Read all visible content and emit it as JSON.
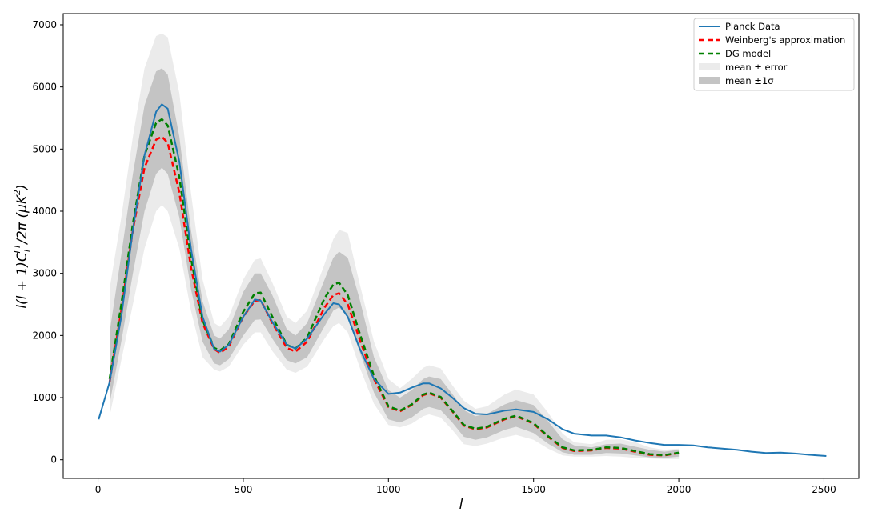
{
  "chart_data": {
    "type": "line",
    "title": "",
    "xlabel": "l",
    "ylabel": "l(l + 1)C_l^TT/2π (μK^2)",
    "ylabel_parts": {
      "main": "l(l + 1)C",
      "sub": "l",
      "sup": "TT",
      "after": "/2π (μK",
      "sup2": "2",
      "end": ")"
    },
    "xlim": [
      -120,
      2620
    ],
    "ylim": [
      -300,
      7180
    ],
    "xticks": [
      0,
      500,
      1000,
      1500,
      2000,
      2500
    ],
    "yticks": [
      0,
      1000,
      2000,
      3000,
      4000,
      5000,
      6000,
      7000
    ],
    "xtick_labels": [
      "0",
      "500",
      "1000",
      "1500",
      "2000",
      "2500"
    ],
    "ytick_labels": [
      "0",
      "1000",
      "2000",
      "3000",
      "4000",
      "5000",
      "6000",
      "7000"
    ],
    "grid": false,
    "legend_position": "top-right",
    "series": [
      {
        "name": "Planck Data",
        "style": "solid",
        "color": "#1f77b4",
        "x": [
          2,
          40,
          80,
          120,
          160,
          200,
          220,
          240,
          280,
          320,
          360,
          400,
          420,
          450,
          500,
          540,
          560,
          600,
          650,
          680,
          720,
          780,
          810,
          830,
          860,
          900,
          950,
          1000,
          1040,
          1080,
          1120,
          1140,
          1180,
          1220,
          1260,
          1300,
          1340,
          1400,
          1440,
          1500,
          1550,
          1600,
          1640,
          1700,
          1750,
          1800,
          1850,
          1900,
          1950,
          2000,
          2050,
          2100,
          2150,
          2200,
          2250,
          2300,
          2350,
          2400,
          2450,
          2508
        ],
        "y": [
          650,
          1250,
          2300,
          3700,
          4900,
          5600,
          5720,
          5650,
          4800,
          3400,
          2300,
          1780,
          1740,
          1850,
          2300,
          2580,
          2560,
          2220,
          1850,
          1790,
          1950,
          2350,
          2520,
          2500,
          2300,
          1800,
          1300,
          1060,
          1080,
          1160,
          1230,
          1230,
          1150,
          1000,
          830,
          740,
          730,
          790,
          810,
          770,
          650,
          490,
          420,
          390,
          390,
          360,
          310,
          270,
          240,
          240,
          230,
          200,
          180,
          160,
          130,
          110,
          115,
          100,
          80,
          60
        ]
      },
      {
        "name": "Weinberg's approximation",
        "style": "dashed",
        "color": "#ff0000",
        "x": [
          40,
          80,
          120,
          160,
          200,
          220,
          240,
          280,
          320,
          360,
          400,
          420,
          450,
          500,
          540,
          560,
          600,
          650,
          680,
          720,
          780,
          810,
          830,
          860,
          900,
          950,
          1000,
          1040,
          1080,
          1120,
          1140,
          1180,
          1220,
          1260,
          1300,
          1340,
          1400,
          1440,
          1500,
          1550,
          1600,
          1640,
          1700,
          1750,
          1800,
          1850,
          1900,
          1950,
          2000
        ],
        "y": [
          1250,
          2400,
          3700,
          4700,
          5150,
          5200,
          5100,
          4300,
          3100,
          2200,
          1780,
          1720,
          1820,
          2300,
          2560,
          2570,
          2200,
          1800,
          1740,
          1900,
          2450,
          2650,
          2680,
          2500,
          1950,
          1300,
          850,
          780,
          880,
          1040,
          1070,
          1000,
          780,
          550,
          490,
          520,
          650,
          700,
          580,
          370,
          190,
          140,
          150,
          190,
          180,
          130,
          80,
          70,
          110
        ]
      },
      {
        "name": "DG model",
        "style": "dashed",
        "color": "#008000",
        "x": [
          40,
          80,
          120,
          160,
          200,
          220,
          240,
          280,
          320,
          360,
          400,
          420,
          450,
          500,
          540,
          560,
          600,
          650,
          680,
          720,
          780,
          810,
          830,
          860,
          900,
          950,
          1000,
          1040,
          1080,
          1120,
          1140,
          1180,
          1220,
          1260,
          1300,
          1340,
          1400,
          1440,
          1500,
          1550,
          1600,
          1640,
          1700,
          1750,
          1800,
          1850,
          1900,
          1950,
          2000
        ],
        "y": [
          1300,
          2500,
          3800,
          4900,
          5420,
          5480,
          5380,
          4550,
          3250,
          2250,
          1800,
          1760,
          1860,
          2380,
          2680,
          2690,
          2300,
          1850,
          1790,
          1970,
          2600,
          2820,
          2850,
          2650,
          2050,
          1350,
          860,
          790,
          890,
          1050,
          1080,
          1010,
          790,
          560,
          500,
          530,
          660,
          710,
          590,
          380,
          200,
          150,
          160,
          200,
          190,
          140,
          90,
          75,
          115
        ]
      }
    ],
    "bands": [
      {
        "name": "mean ± error",
        "color": "#ebebeb",
        "x": [
          40,
          80,
          120,
          160,
          200,
          220,
          240,
          280,
          320,
          360,
          400,
          420,
          450,
          500,
          540,
          560,
          600,
          650,
          680,
          720,
          780,
          810,
          830,
          860,
          900,
          950,
          1000,
          1040,
          1080,
          1120,
          1140,
          1180,
          1220,
          1260,
          1300,
          1340,
          1400,
          1440,
          1500,
          1550,
          1600,
          1640,
          1700,
          1750,
          1800,
          1850,
          1900,
          1950,
          2000
        ],
        "lower": [
          700,
          1600,
          2500,
          3400,
          4000,
          4100,
          4000,
          3400,
          2400,
          1650,
          1450,
          1420,
          1500,
          1850,
          2050,
          2050,
          1750,
          1450,
          1400,
          1500,
          1950,
          2150,
          2200,
          2050,
          1500,
          900,
          560,
          520,
          580,
          700,
          730,
          680,
          480,
          250,
          220,
          260,
          360,
          400,
          320,
          180,
          70,
          50,
          50,
          60,
          50,
          30,
          20,
          10,
          10
        ],
        "upper": [
          2750,
          3900,
          5200,
          6300,
          6820,
          6860,
          6800,
          5900,
          4300,
          2900,
          2200,
          2140,
          2300,
          2900,
          3220,
          3240,
          2850,
          2300,
          2200,
          2400,
          3150,
          3550,
          3700,
          3650,
          2850,
          1900,
          1300,
          1150,
          1300,
          1480,
          1520,
          1470,
          1200,
          950,
          820,
          860,
          1050,
          1130,
          1050,
          760,
          420,
          280,
          250,
          320,
          330,
          280,
          200,
          160,
          180
        ]
      },
      {
        "name": "mean ±1σ",
        "color": "#c4c4c4",
        "x": [
          40,
          80,
          120,
          160,
          200,
          220,
          240,
          280,
          320,
          360,
          400,
          420,
          450,
          500,
          540,
          560,
          600,
          650,
          680,
          720,
          780,
          810,
          830,
          860,
          900,
          950,
          1000,
          1040,
          1080,
          1120,
          1140,
          1180,
          1220,
          1260,
          1300,
          1340,
          1400,
          1440,
          1500,
          1550,
          1600,
          1640,
          1700,
          1750,
          1800,
          1850,
          1900,
          1950,
          2000
        ],
        "lower": [
          900,
          1900,
          3000,
          4000,
          4600,
          4700,
          4600,
          3900,
          2750,
          1900,
          1550,
          1520,
          1620,
          2000,
          2250,
          2260,
          1950,
          1600,
          1550,
          1650,
          2150,
          2400,
          2450,
          2300,
          1750,
          1080,
          650,
          600,
          680,
          820,
          850,
          800,
          600,
          370,
          320,
          360,
          480,
          530,
          430,
          260,
          120,
          80,
          80,
          110,
          100,
          70,
          40,
          30,
          50
        ],
        "upper": [
          2050,
          3300,
          4600,
          5700,
          6250,
          6300,
          6200,
          5200,
          3700,
          2550,
          2000,
          1950,
          2100,
          2700,
          3000,
          3000,
          2650,
          2100,
          2000,
          2200,
          2900,
          3250,
          3350,
          3250,
          2600,
          1650,
          1120,
          1000,
          1120,
          1300,
          1340,
          1300,
          1060,
          800,
          700,
          740,
          890,
          960,
          880,
          620,
          330,
          230,
          200,
          250,
          260,
          210,
          160,
          130,
          160
        ]
      }
    ]
  }
}
